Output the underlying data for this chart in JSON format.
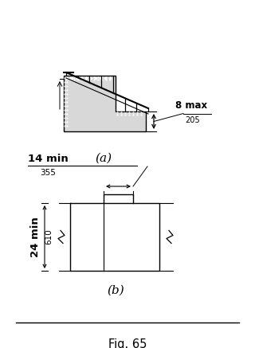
{
  "fig_label": "Fig. 65",
  "label_a": "(a)",
  "label_b": "(b)",
  "text_8max": "8 max",
  "text_205": "205",
  "text_14min": "14 min",
  "text_355": "355",
  "text_24min": "24 min",
  "text_610": "610",
  "bg_color": "#ffffff",
  "line_color": "#000000",
  "gray_fill": "#d8d8d8",
  "lw": 1.0
}
